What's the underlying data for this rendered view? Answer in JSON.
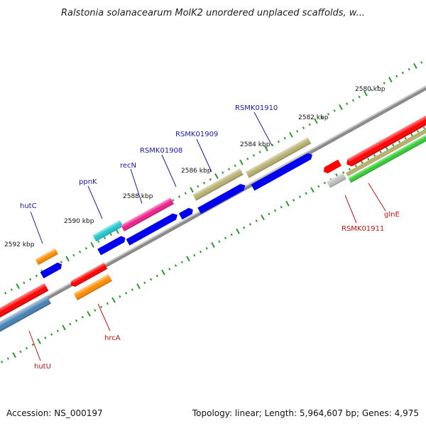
{
  "header": {
    "title": "Ralstonia solanacearum MolK2 unordered unplaced scaffolds, w..."
  },
  "footer": {
    "accession": "Accession: NS_000197",
    "summary": "Topology: linear; Length: 5,964,607 bp; Genes: 4,975"
  },
  "scale": {
    "ticks": [
      "2592 kbp",
      "2590 kbp",
      "2588 kbp",
      "2586 kbp",
      "2584 kbp",
      "2582 kbp",
      "2580 kbp"
    ]
  },
  "genes_top": [
    "hutC",
    "ppnK",
    "recN",
    "RSMK01908",
    "RSMK01909",
    "RSMK01910"
  ],
  "genes_bottom": [
    "hutU",
    "hrcA",
    "RSMK01911",
    "glnE"
  ],
  "colors": {
    "red": "#ff0000",
    "blue": "#0000ee",
    "orange": "#ff8c00",
    "cyan": "#20c8d0",
    "magenta": "#ee1d8c",
    "khaki": "#b8b070",
    "steelblue": "#4682b4",
    "green": "#33cc33",
    "gray": "#c0c0c0",
    "axis": "#888888"
  }
}
